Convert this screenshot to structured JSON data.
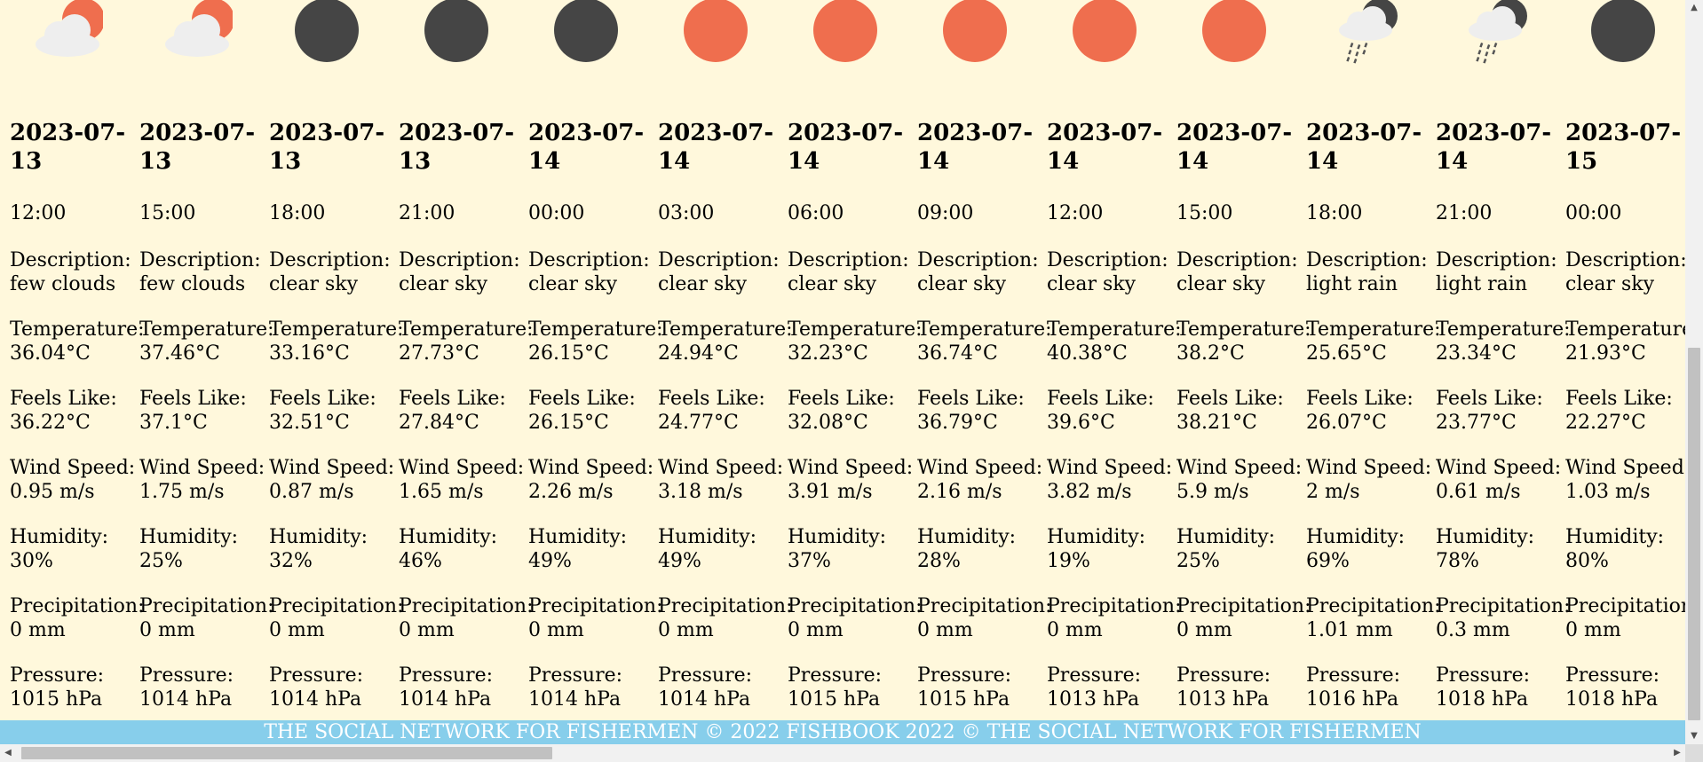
{
  "forecast": [
    {
      "icon": "few-clouds-day-icon",
      "date": "2023-07-13",
      "time": "12:00",
      "description_label": "Description:",
      "description": "few clouds",
      "temperature_label": "Temperature:",
      "temperature": "36.04°C",
      "feels_like_label": "Feels Like:",
      "feels_like": "36.22°C",
      "wind_label": "Wind Speed:",
      "wind": "0.95 m/s",
      "humidity_label": "Humidity:",
      "humidity": "30%",
      "precip_label": "Precipitation:",
      "precip": "0 mm",
      "pressure_label": "Pressure:",
      "pressure": "1015 hPa"
    },
    {
      "icon": "few-clouds-day-icon",
      "date": "2023-07-13",
      "time": "15:00",
      "description_label": "Description:",
      "description": "few clouds",
      "temperature_label": "Temperature:",
      "temperature": "37.46°C",
      "feels_like_label": "Feels Like:",
      "feels_like": "37.1°C",
      "wind_label": "Wind Speed:",
      "wind": "1.75 m/s",
      "humidity_label": "Humidity:",
      "humidity": "25%",
      "precip_label": "Precipitation:",
      "precip": "0 mm",
      "pressure_label": "Pressure:",
      "pressure": "1014 hPa"
    },
    {
      "icon": "clear-sky-night-icon",
      "date": "2023-07-13",
      "time": "18:00",
      "description_label": "Description:",
      "description": "clear sky",
      "temperature_label": "Temperature:",
      "temperature": "33.16°C",
      "feels_like_label": "Feels Like:",
      "feels_like": "32.51°C",
      "wind_label": "Wind Speed:",
      "wind": "0.87 m/s",
      "humidity_label": "Humidity:",
      "humidity": "32%",
      "precip_label": "Precipitation:",
      "precip": "0 mm",
      "pressure_label": "Pressure:",
      "pressure": "1014 hPa"
    },
    {
      "icon": "clear-sky-night-icon",
      "date": "2023-07-13",
      "time": "21:00",
      "description_label": "Description:",
      "description": "clear sky",
      "temperature_label": "Temperature:",
      "temperature": "27.73°C",
      "feels_like_label": "Feels Like:",
      "feels_like": "27.84°C",
      "wind_label": "Wind Speed:",
      "wind": "1.65 m/s",
      "humidity_label": "Humidity:",
      "humidity": "46%",
      "precip_label": "Precipitation:",
      "precip": "0 mm",
      "pressure_label": "Pressure:",
      "pressure": "1014 hPa"
    },
    {
      "icon": "clear-sky-night-icon",
      "date": "2023-07-14",
      "time": "00:00",
      "description_label": "Description:",
      "description": "clear sky",
      "temperature_label": "Temperature:",
      "temperature": "26.15°C",
      "feels_like_label": "Feels Like:",
      "feels_like": "26.15°C",
      "wind_label": "Wind Speed:",
      "wind": "2.26 m/s",
      "humidity_label": "Humidity:",
      "humidity": "49%",
      "precip_label": "Precipitation:",
      "precip": "0 mm",
      "pressure_label": "Pressure:",
      "pressure": "1014 hPa"
    },
    {
      "icon": "clear-sky-day-icon",
      "date": "2023-07-14",
      "time": "03:00",
      "description_label": "Description:",
      "description": "clear sky",
      "temperature_label": "Temperature:",
      "temperature": "24.94°C",
      "feels_like_label": "Feels Like:",
      "feels_like": "24.77°C",
      "wind_label": "Wind Speed:",
      "wind": "3.18 m/s",
      "humidity_label": "Humidity:",
      "humidity": "49%",
      "precip_label": "Precipitation:",
      "precip": "0 mm",
      "pressure_label": "Pressure:",
      "pressure": "1014 hPa"
    },
    {
      "icon": "clear-sky-day-icon",
      "date": "2023-07-14",
      "time": "06:00",
      "description_label": "Description:",
      "description": "clear sky",
      "temperature_label": "Temperature:",
      "temperature": "32.23°C",
      "feels_like_label": "Feels Like:",
      "feels_like": "32.08°C",
      "wind_label": "Wind Speed:",
      "wind": "3.91 m/s",
      "humidity_label": "Humidity:",
      "humidity": "37%",
      "precip_label": "Precipitation:",
      "precip": "0 mm",
      "pressure_label": "Pressure:",
      "pressure": "1015 hPa"
    },
    {
      "icon": "clear-sky-day-icon",
      "date": "2023-07-14",
      "time": "09:00",
      "description_label": "Description:",
      "description": "clear sky",
      "temperature_label": "Temperature:",
      "temperature": "36.74°C",
      "feels_like_label": "Feels Like:",
      "feels_like": "36.79°C",
      "wind_label": "Wind Speed:",
      "wind": "2.16 m/s",
      "humidity_label": "Humidity:",
      "humidity": "28%",
      "precip_label": "Precipitation:",
      "precip": "0 mm",
      "pressure_label": "Pressure:",
      "pressure": "1015 hPa"
    },
    {
      "icon": "clear-sky-day-icon",
      "date": "2023-07-14",
      "time": "12:00",
      "description_label": "Description:",
      "description": "clear sky",
      "temperature_label": "Temperature:",
      "temperature": "40.38°C",
      "feels_like_label": "Feels Like:",
      "feels_like": "39.6°C",
      "wind_label": "Wind Speed:",
      "wind": "3.82 m/s",
      "humidity_label": "Humidity:",
      "humidity": "19%",
      "precip_label": "Precipitation:",
      "precip": "0 mm",
      "pressure_label": "Pressure:",
      "pressure": "1013 hPa"
    },
    {
      "icon": "clear-sky-day-icon",
      "date": "2023-07-14",
      "time": "15:00",
      "description_label": "Description:",
      "description": "clear sky",
      "temperature_label": "Temperature:",
      "temperature": "38.2°C",
      "feels_like_label": "Feels Like:",
      "feels_like": "38.21°C",
      "wind_label": "Wind Speed:",
      "wind": "5.9 m/s",
      "humidity_label": "Humidity:",
      "humidity": "25%",
      "precip_label": "Precipitation:",
      "precip": "0 mm",
      "pressure_label": "Pressure:",
      "pressure": "1013 hPa"
    },
    {
      "icon": "light-rain-night-icon",
      "date": "2023-07-14",
      "time": "18:00",
      "description_label": "Description:",
      "description": "light rain",
      "temperature_label": "Temperature:",
      "temperature": "25.65°C",
      "feels_like_label": "Feels Like:",
      "feels_like": "26.07°C",
      "wind_label": "Wind Speed:",
      "wind": "2 m/s",
      "humidity_label": "Humidity:",
      "humidity": "69%",
      "precip_label": "Precipitation:",
      "precip": "1.01 mm",
      "pressure_label": "Pressure:",
      "pressure": "1016 hPa"
    },
    {
      "icon": "light-rain-night-icon",
      "date": "2023-07-14",
      "time": "21:00",
      "description_label": "Description:",
      "description": "light rain",
      "temperature_label": "Temperature:",
      "temperature": "23.34°C",
      "feels_like_label": "Feels Like:",
      "feels_like": "23.77°C",
      "wind_label": "Wind Speed:",
      "wind": "0.61 m/s",
      "humidity_label": "Humidity:",
      "humidity": "78%",
      "precip_label": "Precipitation:",
      "precip": "0.3 mm",
      "pressure_label": "Pressure:",
      "pressure": "1018 hPa"
    },
    {
      "icon": "clear-sky-night-icon",
      "date": "2023-07-15",
      "time": "00:00",
      "description_label": "Description:",
      "description": "clear sky",
      "temperature_label": "Temperature:",
      "temperature": "21.93°C",
      "feels_like_label": "Feels Like:",
      "feels_like": "22.27°C",
      "wind_label": "Wind Speed:",
      "wind": "1.03 m/s",
      "humidity_label": "Humidity:",
      "humidity": "80%",
      "precip_label": "Precipitation:",
      "precip": "0 mm",
      "pressure_label": "Pressure:",
      "pressure": "1018 hPa"
    }
  ],
  "footer": {
    "text": "THE SOCIAL NETWORK FOR FISHERMEN © 2022 FISHBOOK 2022 © THE SOCIAL NETWORK FOR FISHERMEN"
  },
  "colors": {
    "background": "#fff8dc",
    "sun": "#ef6e4e",
    "moon": "#454545",
    "cloud": "#eeeeee",
    "footer": "#87ceeb"
  }
}
